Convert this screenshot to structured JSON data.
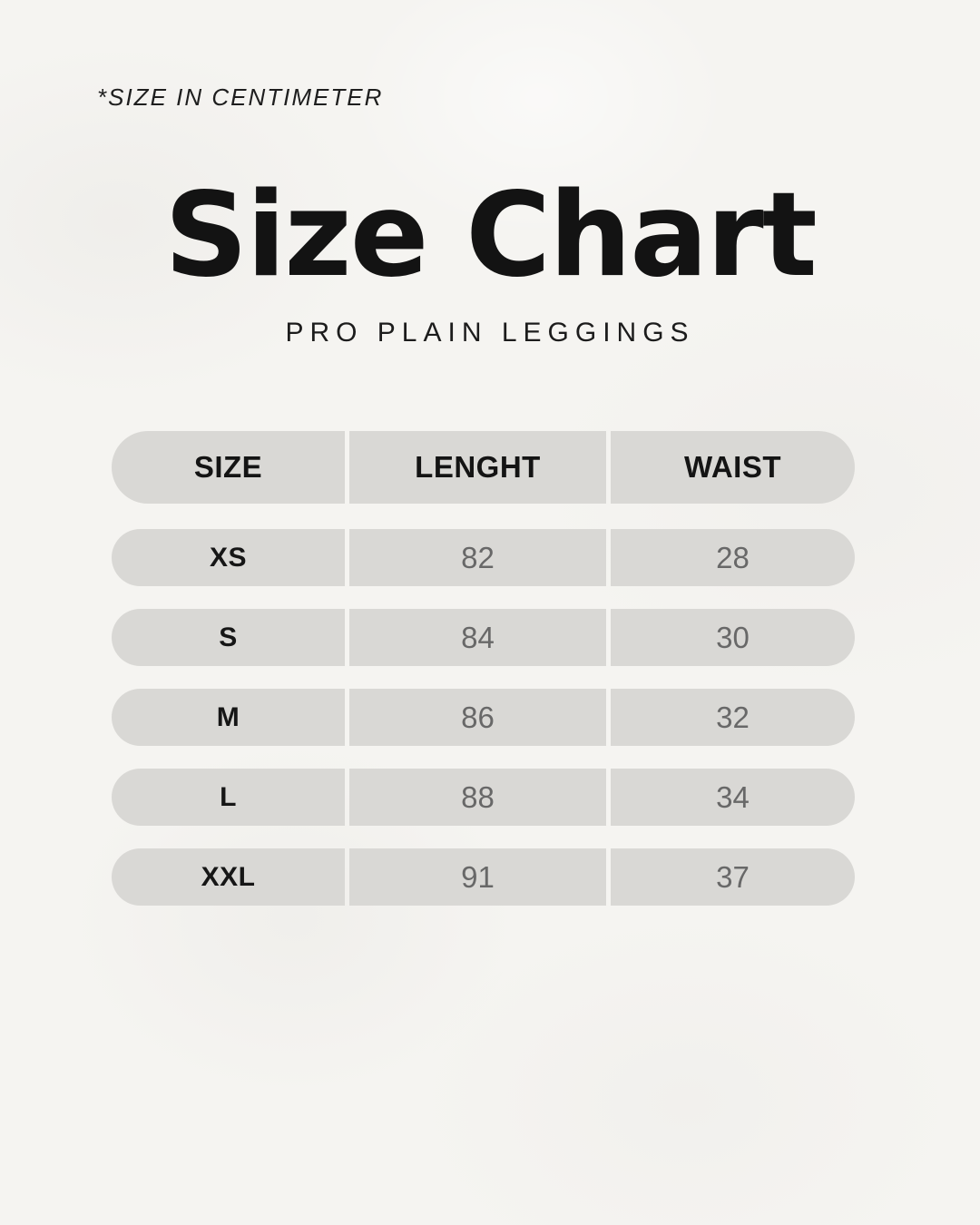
{
  "note": "*SIZE IN CENTIMETER",
  "title": "Size Chart",
  "subtitle": "PRO PLAIN LEGGINGS",
  "table": {
    "headers": [
      "SIZE",
      "LENGHT",
      "WAIST"
    ],
    "rows": [
      {
        "size": "XS",
        "length": "82",
        "waist": "28"
      },
      {
        "size": "S",
        "length": "84",
        "waist": "30"
      },
      {
        "size": "M",
        "length": "86",
        "waist": "32"
      },
      {
        "size": "L",
        "length": "88",
        "waist": "34"
      },
      {
        "size": "XXL",
        "length": "91",
        "waist": "37"
      }
    ]
  },
  "colors": {
    "background": "#f5f4f1",
    "pill": "#d9d8d5",
    "text_dark": "#161616",
    "text_number_gray": "#686868"
  },
  "chart_data": {
    "type": "table",
    "title": "Size Chart",
    "subtitle": "PRO PLAIN LEGGINGS",
    "note": "*SIZE IN CENTIMETER",
    "units": "cm",
    "columns": [
      "SIZE",
      "LENGHT",
      "WAIST"
    ],
    "rows": [
      [
        "XS",
        82,
        28
      ],
      [
        "S",
        84,
        30
      ],
      [
        "M",
        86,
        32
      ],
      [
        "L",
        88,
        34
      ],
      [
        "XXL",
        91,
        37
      ]
    ]
  }
}
